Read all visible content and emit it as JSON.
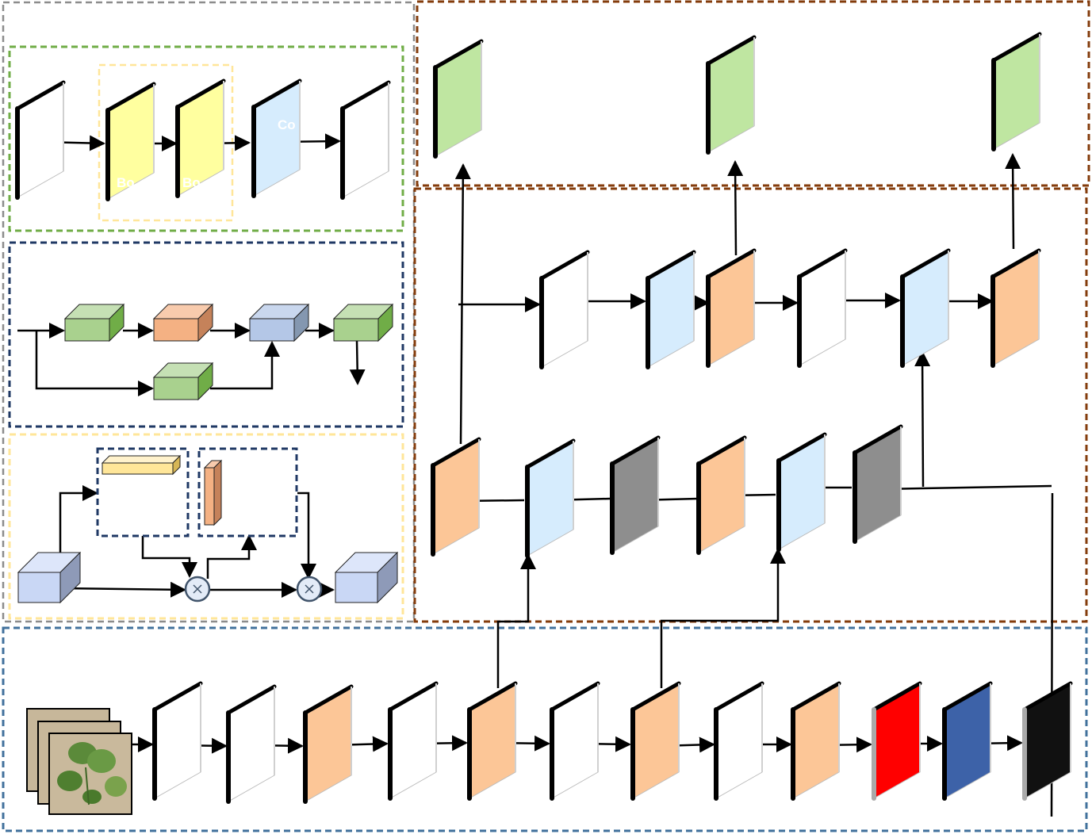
{
  "colors": {
    "white_block": "#ffffff",
    "yellow_block": "#ffff9f",
    "light_blue_block": "#d6ecfd",
    "orange_block": "#fcc697",
    "gray_block": "#8e8e8e",
    "green_block": "#bfe6a1",
    "red_block": "#ff0000",
    "dark_blue_block": "#3d62a8",
    "black_block": "#111111",
    "frame_gray": "#8c8c8c",
    "frame_green": "#70ad47",
    "frame_navy": "#1f3864",
    "frame_yellow": "#ffe699",
    "frame_brown": "#843c0c",
    "frame_steel": "#41719c"
  },
  "labels": {
    "c3_block": "Co",
    "bottleneck_1": "Bo",
    "bottleneck_2": "Bo"
  },
  "icons": {
    "multiply": "multiply-icon",
    "leaf_photo": "leaf-photo-icon"
  }
}
